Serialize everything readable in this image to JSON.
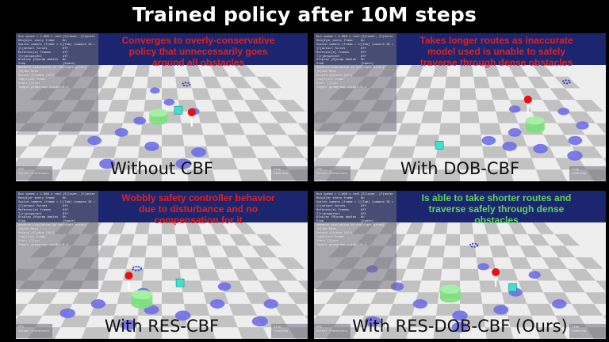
{
  "title": "Trained policy after 10M steps",
  "overlay_rows": [
    [
      "Run speed = 1.000 x real time",
      "[S]lower, [F]aster"
    ],
    [
      "Ren[d]er every frame",
      "On"
    ],
    [
      "Switch camera (frame = 1)",
      "[Tab] (camera ID = -1)"
    ],
    [
      "[C]ontact forces",
      "Off"
    ],
    [
      "Referenc[e] frames",
      "Off"
    ],
    [
      "T[r]ansparent",
      "Off"
    ],
    [
      "Display [M]ocap bodies",
      "On"
    ],
    [
      "Stop",
      "[Space]"
    ],
    [
      "Advance simulation by one step",
      "[right arrow]"
    ],
    [
      "[H]ide Menu",
      ""
    ],
    [
      "Record [V]ideo (Off)",
      ""
    ],
    [
      "Cap[t]ure frame",
      ""
    ],
    [
      "Start [I]xyz",
      ""
    ],
    [
      "Toggle geomgroup visibility",
      "0-4"
    ]
  ],
  "panels": [
    {
      "label": "Without CBF",
      "note_lines": [
        "Converges to overly-conservative",
        "policy that unnecessarily goes",
        "around all obstacles"
      ],
      "note_color": "red",
      "stats_left": [
        "FPS",
        "Solver iterations"
      ],
      "stats_right": [
        "Step",
        "timestep"
      ]
    },
    {
      "label": "With DOB-CBF",
      "note_lines": [
        "Takes longer routes as inaccurate",
        "model used is unable to safely",
        "traverse through dense obstacles"
      ],
      "note_color": "red",
      "stats_left": [
        "FPS",
        "Solver iterations"
      ],
      "stats_right": [
        "Step",
        "timestep"
      ]
    },
    {
      "label": "With RES-CBF",
      "note_lines": [
        "Wobbly safety controller behavior",
        "due to disturbance and no",
        "compensation for it"
      ],
      "note_color": "red",
      "stats_left": [
        "FPS",
        "Solver iterations"
      ],
      "stats_right": [
        "Step",
        "timestep"
      ]
    },
    {
      "label": "With RES-DOB-CBF (Ours)",
      "note_lines": [
        "Is able to take shorter routes and",
        "traverse safely through dense",
        "obstacles"
      ],
      "note_color": "green",
      "stats_left": [
        "FPS",
        "Solver iterations"
      ],
      "stats_right": [
        "Step",
        "timestep"
      ]
    }
  ],
  "colors": {
    "sky": "#1c2670",
    "floor_light": "#eeeeee",
    "floor_dark": "#c2c2c2",
    "obstacle": "#6f6fe8",
    "goal": "#7de07d",
    "drone": "#e81010",
    "cube": "#40e0d0"
  }
}
